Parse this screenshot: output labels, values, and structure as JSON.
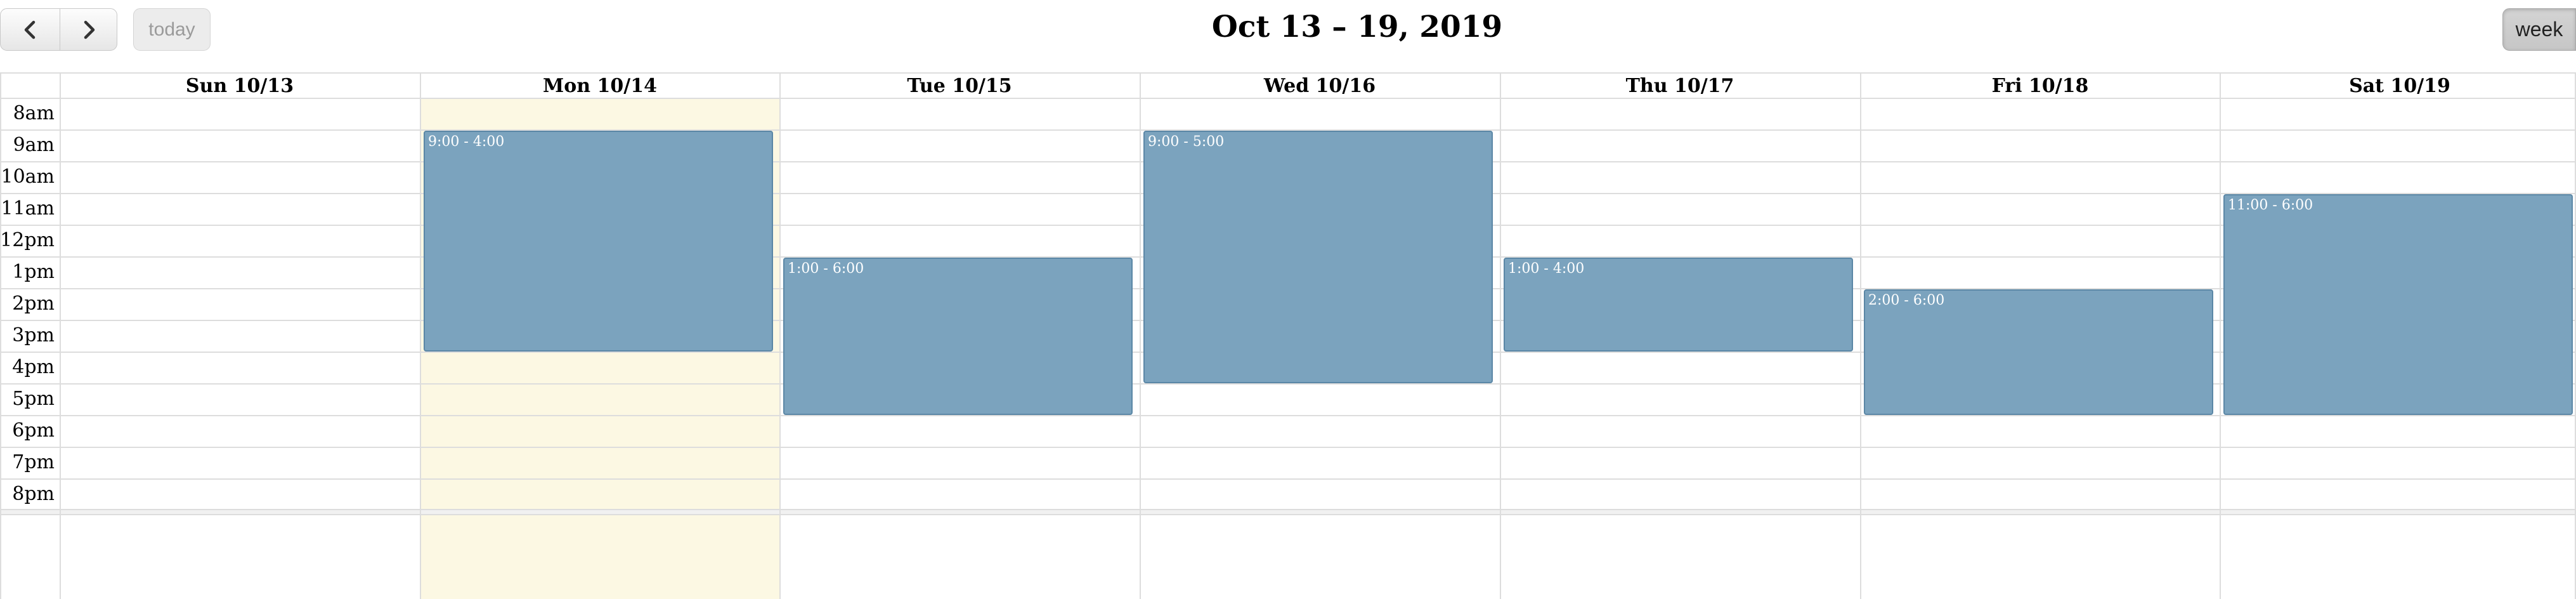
{
  "toolbar": {
    "prev_icon": "chevron-left-icon",
    "next_icon": "chevron-right-icon",
    "today_label": "today",
    "title": "Oct 13 – 19, 2019",
    "week_label": "week"
  },
  "days": [
    {
      "label": "Sun 10/13"
    },
    {
      "label": "Mon 10/14"
    },
    {
      "label": "Tue 10/15"
    },
    {
      "label": "Wed 10/16"
    },
    {
      "label": "Thu 10/17"
    },
    {
      "label": "Fri 10/18"
    },
    {
      "label": "Sat 10/19"
    }
  ],
  "times": [
    "8am",
    "9am",
    "10am",
    "11am",
    "12pm",
    "1pm",
    "2pm",
    "3pm",
    "4pm",
    "5pm",
    "6pm",
    "7pm",
    "8pm"
  ],
  "events": [
    {
      "day": "Mon 10/14",
      "label": "9:00 - 4:00"
    },
    {
      "day": "Tue 10/15",
      "label": "1:00 - 6:00"
    },
    {
      "day": "Wed 10/16",
      "label": "9:00 - 5:00"
    },
    {
      "day": "Thu 10/17",
      "label": "1:00 - 4:00"
    },
    {
      "day": "Fri 10/18",
      "label": "2:00 - 6:00"
    },
    {
      "day": "Sat 10/19",
      "label": "11:00 - 6:00"
    }
  ],
  "colors": {
    "event_fill": "#7ba3be",
    "event_border": "#5b87a6",
    "today_highlight": "#fcf8e3",
    "grid_line": "#dddddd"
  }
}
